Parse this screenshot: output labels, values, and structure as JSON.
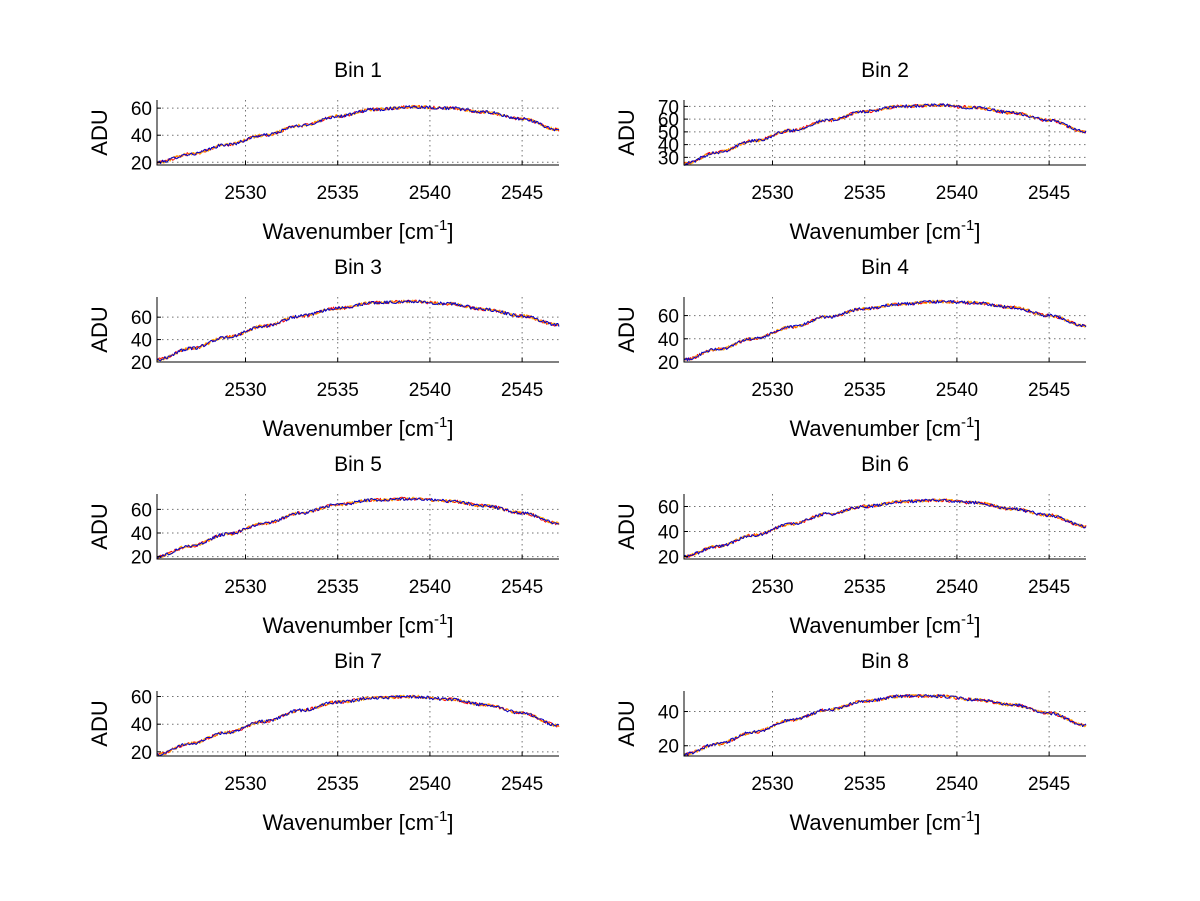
{
  "figure": {
    "series_colors": [
      "#ff0000",
      "#ffa500",
      "#0000cc"
    ]
  },
  "chart_data": [
    {
      "type": "line",
      "title": "Bin 1",
      "xlabel": "Wavenumber [cm",
      "xlabel_sup": "-1",
      "xlabel_close": "]",
      "ylabel": "ADU",
      "xlim": [
        2525.2,
        2547
      ],
      "ylim": [
        18,
        66
      ],
      "xticks": [
        2530,
        2535,
        2540,
        2545
      ],
      "yticks": [
        20,
        40,
        60
      ],
      "x": [
        2525.2,
        2527,
        2529,
        2531,
        2533,
        2535,
        2537,
        2539,
        2541,
        2543,
        2545,
        2547
      ],
      "y": [
        20,
        26,
        33,
        40,
        47,
        54,
        59,
        61,
        60,
        57,
        52,
        44
      ]
    },
    {
      "type": "line",
      "title": "Bin 2",
      "xlabel": "Wavenumber [cm",
      "xlabel_sup": "-1",
      "xlabel_close": "]",
      "ylabel": "ADU",
      "xlim": [
        2525.2,
        2547
      ],
      "ylim": [
        24,
        75
      ],
      "xticks": [
        2530,
        2535,
        2540,
        2545
      ],
      "yticks": [
        30,
        40,
        50,
        60,
        70
      ],
      "x": [
        2525.2,
        2527,
        2529,
        2531,
        2533,
        2535,
        2537,
        2539,
        2541,
        2543,
        2545,
        2547
      ],
      "y": [
        25,
        34,
        43,
        51,
        59,
        66,
        70,
        71,
        69,
        65,
        59,
        50
      ]
    },
    {
      "type": "line",
      "title": "Bin 3",
      "xlabel": "Wavenumber [cm",
      "xlabel_sup": "-1",
      "xlabel_close": "]",
      "ylabel": "ADU",
      "xlim": [
        2525.2,
        2547
      ],
      "ylim": [
        20,
        78
      ],
      "xticks": [
        2530,
        2535,
        2540,
        2545
      ],
      "yticks": [
        20,
        40,
        60
      ],
      "x": [
        2525.2,
        2527,
        2529,
        2531,
        2533,
        2535,
        2537,
        2539,
        2541,
        2543,
        2545,
        2547
      ],
      "y": [
        22,
        32,
        42,
        52,
        61,
        68,
        73,
        74,
        72,
        67,
        61,
        53
      ]
    },
    {
      "type": "line",
      "title": "Bin 4",
      "xlabel": "Wavenumber [cm",
      "xlabel_sup": "-1",
      "xlabel_close": "]",
      "ylabel": "ADU",
      "xlim": [
        2525.2,
        2547
      ],
      "ylim": [
        20,
        76
      ],
      "xticks": [
        2530,
        2535,
        2540,
        2545
      ],
      "yticks": [
        20,
        40,
        60
      ],
      "x": [
        2525.2,
        2527,
        2529,
        2531,
        2533,
        2535,
        2537,
        2539,
        2541,
        2543,
        2545,
        2547
      ],
      "y": [
        22,
        31,
        40,
        50,
        59,
        66,
        70,
        72,
        71,
        67,
        60,
        51
      ]
    },
    {
      "type": "line",
      "title": "Bin 5",
      "xlabel": "Wavenumber [cm",
      "xlabel_sup": "-1",
      "xlabel_close": "]",
      "ylabel": "ADU",
      "xlim": [
        2525.2,
        2547
      ],
      "ylim": [
        18,
        73
      ],
      "xticks": [
        2530,
        2535,
        2540,
        2545
      ],
      "yticks": [
        20,
        40,
        60
      ],
      "x": [
        2525.2,
        2527,
        2529,
        2531,
        2533,
        2535,
        2537,
        2539,
        2541,
        2543,
        2545,
        2547
      ],
      "y": [
        20,
        29,
        39,
        48,
        57,
        64,
        68,
        69,
        67,
        63,
        57,
        48
      ]
    },
    {
      "type": "line",
      "title": "Bin 6",
      "xlabel": "Wavenumber [cm",
      "xlabel_sup": "-1",
      "xlabel_close": "]",
      "ylabel": "ADU",
      "xlim": [
        2525.2,
        2547
      ],
      "ylim": [
        18,
        70
      ],
      "xticks": [
        2530,
        2535,
        2540,
        2545
      ],
      "yticks": [
        20,
        40,
        60
      ],
      "x": [
        2525.2,
        2527,
        2529,
        2531,
        2533,
        2535,
        2537,
        2539,
        2541,
        2543,
        2545,
        2547
      ],
      "y": [
        20,
        28,
        37,
        46,
        54,
        60,
        64,
        65,
        63,
        58,
        53,
        44
      ]
    },
    {
      "type": "line",
      "title": "Bin 7",
      "xlabel": "Wavenumber [cm",
      "xlabel_sup": "-1",
      "xlabel_close": "]",
      "ylabel": "ADU",
      "xlim": [
        2525.2,
        2547
      ],
      "ylim": [
        17,
        64
      ],
      "xticks": [
        2530,
        2535,
        2540,
        2545
      ],
      "yticks": [
        20,
        40,
        60
      ],
      "x": [
        2525.2,
        2527,
        2529,
        2531,
        2533,
        2535,
        2537,
        2539,
        2541,
        2543,
        2545,
        2547
      ],
      "y": [
        18,
        26,
        34,
        42,
        50,
        56,
        59,
        60,
        58,
        54,
        48,
        39
      ]
    },
    {
      "type": "line",
      "title": "Bin 8",
      "xlabel": "Wavenumber [cm",
      "xlabel_sup": "-1",
      "xlabel_close": "]",
      "ylabel": "ADU",
      "xlim": [
        2525.2,
        2547
      ],
      "ylim": [
        14,
        52
      ],
      "xticks": [
        2530,
        2535,
        2540,
        2545
      ],
      "yticks": [
        20,
        40
      ],
      "x": [
        2525.2,
        2527,
        2529,
        2531,
        2533,
        2535,
        2537,
        2539,
        2541,
        2543,
        2545,
        2547
      ],
      "y": [
        15,
        21,
        28,
        35,
        41,
        46,
        49,
        49,
        47,
        44,
        39,
        32
      ]
    }
  ]
}
